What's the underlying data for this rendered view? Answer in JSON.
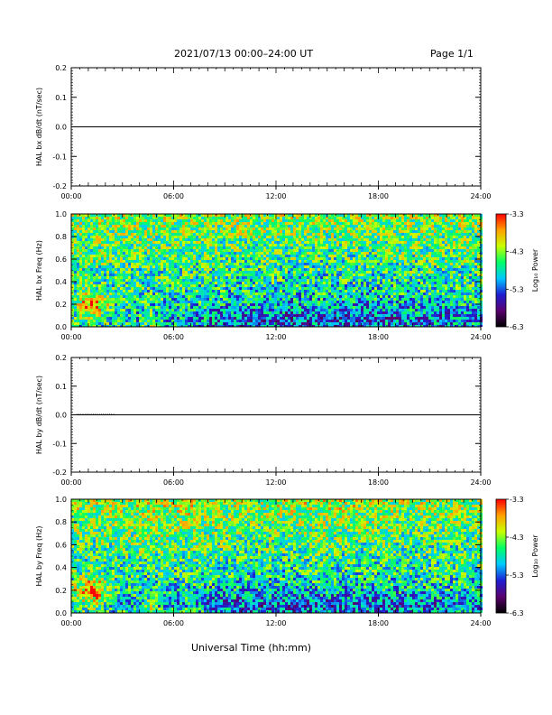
{
  "header": {
    "title": "2021/07/13  00:00–24:00 UT",
    "page": "Page 1/1"
  },
  "x_axis_label": "Universal Time (hh:mm)",
  "chart_data": [
    {
      "type": "line",
      "name": "bx-dbdt",
      "ylabel": "HAL bx dB/dt (nT/sec)",
      "xlim": [
        "00:00",
        "24:00"
      ],
      "ylim": [
        -0.2,
        0.2
      ],
      "x_ticks": [
        "00:00",
        "06:00",
        "12:00",
        "18:00",
        "24:00"
      ],
      "y_ticks": [
        "-0.2",
        "-0.1",
        "0.0",
        "0.1",
        "0.2"
      ],
      "series": [
        {
          "x": [
            "00:00",
            "24:00"
          ],
          "y": [
            0.0,
            0.0
          ]
        }
      ]
    },
    {
      "type": "heatmap",
      "name": "bx-spectrogram",
      "ylabel": "HAL bx Freq (Hz)",
      "xlim": [
        "00:00",
        "24:00"
      ],
      "ylim": [
        0.0,
        1.0
      ],
      "x_ticks": [
        "00:00",
        "06:00",
        "12:00",
        "18:00",
        "24:00"
      ],
      "y_ticks": [
        "0.0",
        "0.2",
        "0.4",
        "0.6",
        "0.8",
        "1.0"
      ],
      "colorbar": {
        "label": "Log₁₀ Power",
        "ticks": [
          "-3.3",
          "-4.3",
          "-5.3",
          "-6.3"
        ],
        "range": [
          -6.3,
          -3.3
        ]
      },
      "colormap": [
        "#000000",
        "#5a006e",
        "#1e1ed2",
        "#00c8ff",
        "#00ff64",
        "#c8ff00",
        "#ffa000",
        "#ff0000"
      ]
    },
    {
      "type": "line",
      "name": "by-dbdt",
      "ylabel": "HAL by dB/dt (nT/sec)",
      "xlim": [
        "00:00",
        "24:00"
      ],
      "ylim": [
        -0.2,
        0.2
      ],
      "x_ticks": [
        "00:00",
        "06:00",
        "12:00",
        "18:00",
        "24:00"
      ],
      "y_ticks": [
        "-0.2",
        "-0.1",
        "0.0",
        "0.1",
        "0.2"
      ],
      "series": [
        {
          "x": [
            "00:00",
            "24:00"
          ],
          "y": [
            0.0,
            0.0
          ]
        }
      ]
    },
    {
      "type": "heatmap",
      "name": "by-spectrogram",
      "ylabel": "HAL by Freq (Hz)",
      "xlim": [
        "00:00",
        "24:00"
      ],
      "ylim": [
        0.0,
        1.0
      ],
      "x_ticks": [
        "00:00",
        "06:00",
        "12:00",
        "18:00",
        "24:00"
      ],
      "y_ticks": [
        "0.0",
        "0.2",
        "0.4",
        "0.6",
        "0.8",
        "1.0"
      ],
      "colorbar": {
        "label": "Log₁₀ Power",
        "ticks": [
          "-3.3",
          "-4.3",
          "-5.3",
          "-6.3"
        ],
        "range": [
          -6.3,
          -3.3
        ]
      },
      "colormap": [
        "#000000",
        "#5a006e",
        "#1e1ed2",
        "#00c8ff",
        "#00ff64",
        "#c8ff00",
        "#ffa000",
        "#ff0000"
      ]
    }
  ]
}
